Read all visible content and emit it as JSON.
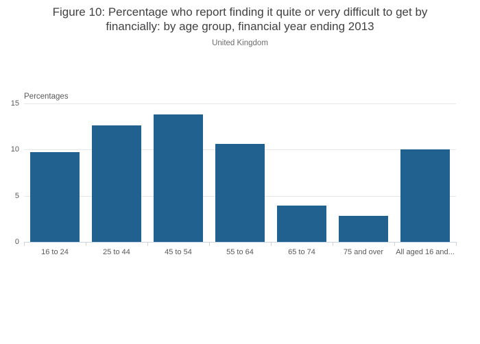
{
  "header": {
    "title_line1": "Figure 10: Percentage who report finding it quite or very difficult to get by",
    "title_line2": "financially: by age group, financial year ending 2013",
    "subtitle": "United Kingdom"
  },
  "chart_data": {
    "type": "bar",
    "title": "Figure 10: Percentage who report finding it quite or very difficult to get by financially: by age group, financial year ending 2013",
    "subtitle": "United Kingdom",
    "categories": [
      "16 to 24",
      "25 to 44",
      "45 to 54",
      "55 to 64",
      "65 to 74",
      "75 and over",
      "All aged 16 and..."
    ],
    "values": [
      9.7,
      12.6,
      13.8,
      10.6,
      3.9,
      2.8,
      10.0
    ],
    "xlabel": "",
    "ylabel": "Percentages",
    "yticks": [
      0,
      5,
      10,
      15
    ],
    "ylim": [
      0,
      15
    ],
    "grid": true,
    "legend": "none",
    "bar_color": "#20618f"
  },
  "colors": {
    "bar": "#20618f",
    "gridline": "#e4e6e8",
    "axis": "#c9d4e6",
    "title_text": "#414042",
    "subtitle_text": "#6b6b6b",
    "tick_text": "#595959",
    "background": "#ffffff"
  }
}
